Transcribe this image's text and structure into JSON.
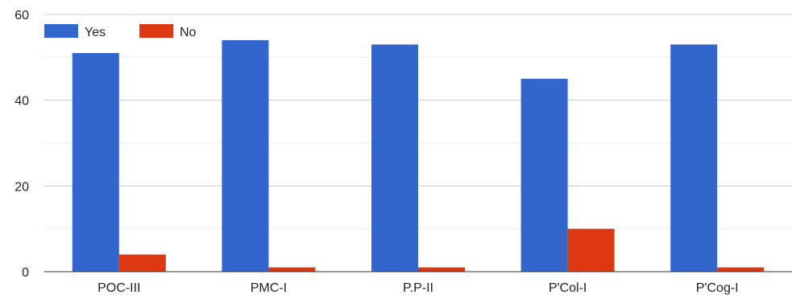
{
  "chart_data": {
    "type": "bar",
    "categories": [
      "POC-III",
      "PMC-I",
      "P.P-II",
      "P'Col-I",
      "P'Cog-I"
    ],
    "series": [
      {
        "name": "Yes",
        "color": "#3366cc",
        "values": [
          51,
          54,
          53,
          45,
          53
        ]
      },
      {
        "name": "No",
        "color": "#dc3912",
        "values": [
          4,
          1,
          1,
          10,
          1
        ]
      }
    ],
    "yticks": [
      "0",
      "20",
      "40",
      "60"
    ],
    "ylim": [
      0,
      60
    ],
    "grid": true,
    "legend_position": "top-left"
  }
}
